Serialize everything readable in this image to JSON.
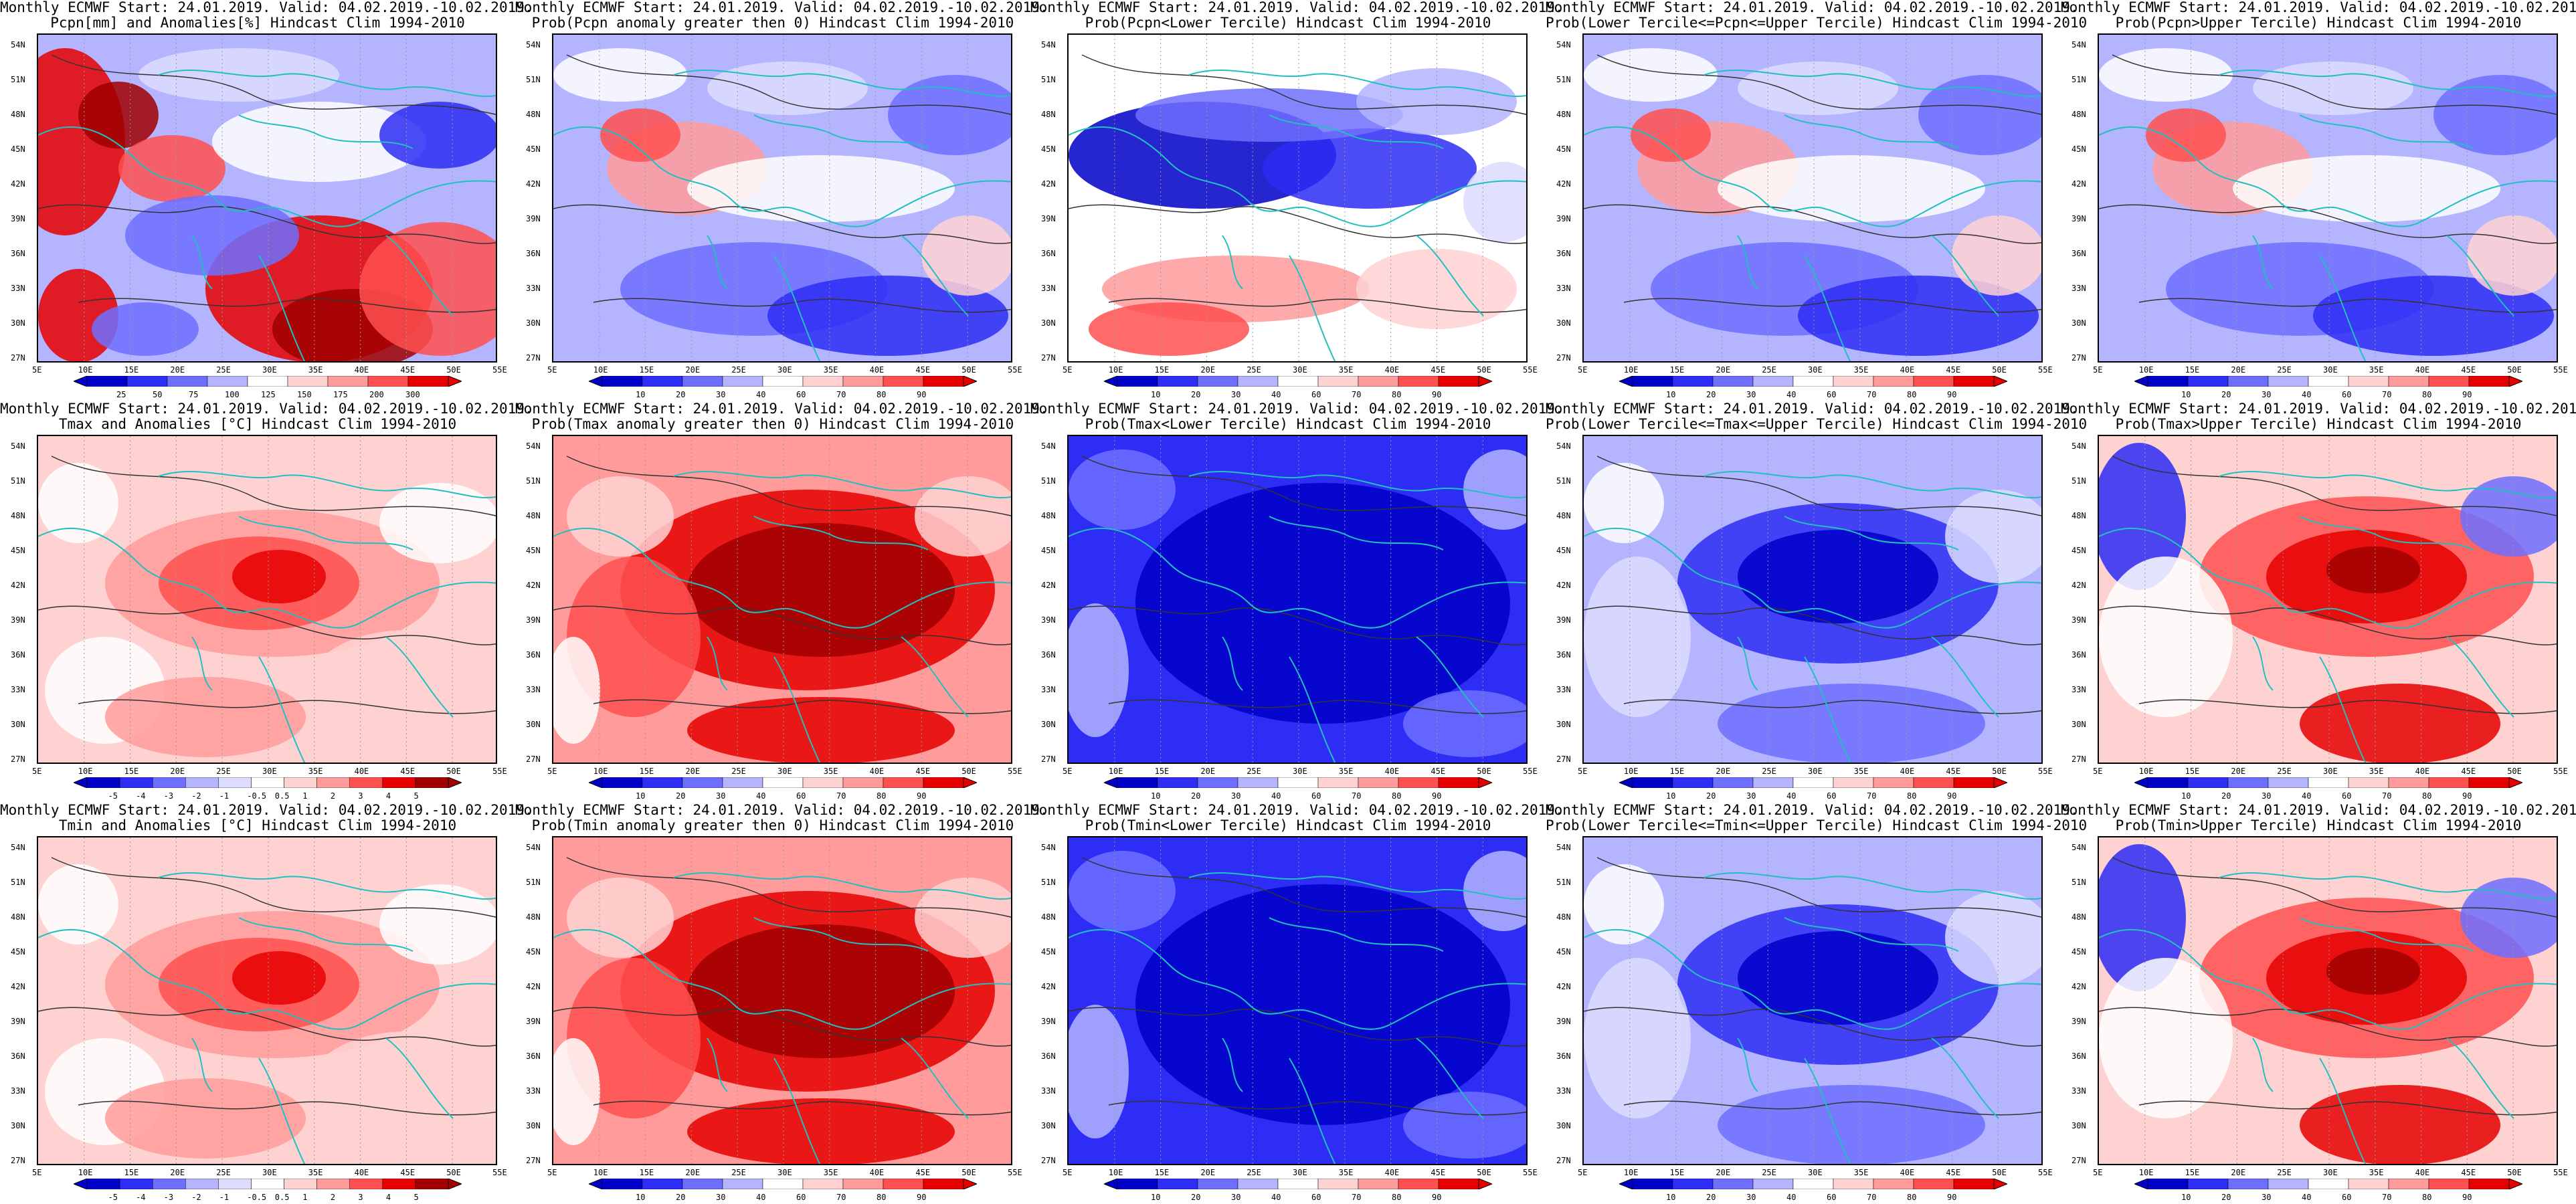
{
  "title_line1": "Monthly ECMWF Start: 24.01.2019. Valid: 04.02.2019.-10.02.2019.",
  "lat_labels": [
    "54N",
    "51N",
    "48N",
    "45N",
    "42N",
    "39N",
    "36N",
    "33N",
    "30N",
    "27N"
  ],
  "lon_labels": [
    "5E",
    "10E",
    "15E",
    "20E",
    "25E",
    "30E",
    "35E",
    "40E",
    "45E",
    "50E",
    "55E"
  ],
  "colors": {
    "deep_blue": "#0000c8",
    "blue": "#2d2df5",
    "mid_blue": "#6e6eff",
    "light_blue": "#b4b4ff",
    "pale_blue": "#dcdcff",
    "white": "#ffffff",
    "pale_red": "#ffd2d2",
    "light_red": "#ff9b9b",
    "mid_red": "#ff5050",
    "red": "#e60000",
    "deep_red": "#a00000",
    "coast": "#20c0c0",
    "contour": "#333333"
  },
  "rows": [
    {
      "variable": "precipitation",
      "panels": [
        {
          "id": "pcpn-anom",
          "title_line2": "Pcpn[mm] and Anomalies[%] Hindcast Clim 1994-2010",
          "colorbar_labels": [
            "25",
            "50",
            "75",
            "100",
            "125",
            "150",
            "175",
            "200",
            "300"
          ],
          "scheme": "anomaly_red"
        },
        {
          "id": "pcpn-prob-gt0",
          "title_line2": "Prob(Pcpn anomaly greater then 0) Hindcast Clim 1994-2010",
          "colorbar_labels": [
            "10",
            "20",
            "30",
            "40",
            "60",
            "70",
            "80",
            "90"
          ],
          "scheme": "mixed_blue"
        },
        {
          "id": "pcpn-lower",
          "title_line2": "Prob(Pcpn<Lower Tercile) Hindcast Clim 1994-2010",
          "colorbar_labels": [
            "10",
            "20",
            "30",
            "40",
            "60",
            "70",
            "80",
            "90"
          ],
          "scheme": "pcpn_lower"
        },
        {
          "id": "pcpn-middle",
          "title_line2": "Prob(Lower Tercile<=Pcpn<=Upper Tercile) Hindcast Clim 1994-2010",
          "colorbar_labels": [
            "10",
            "20",
            "30",
            "40",
            "60",
            "70",
            "80",
            "90"
          ],
          "scheme": "mixed_blue"
        },
        {
          "id": "pcpn-upper",
          "title_line2": "Prob(Pcpn>Upper Tercile) Hindcast Clim 1994-2010",
          "colorbar_labels": [
            "10",
            "20",
            "30",
            "40",
            "60",
            "70",
            "80",
            "90"
          ],
          "scheme": "mixed_blue"
        }
      ]
    },
    {
      "variable": "tmax",
      "panels": [
        {
          "id": "tmax-anom",
          "title_line2": "Tmax and Anomalies [°C] Hindcast Clim 1994-2010",
          "colorbar_labels": [
            "-5",
            "-4",
            "-3",
            "-2",
            "-1",
            "-0.5",
            "0.5",
            "1",
            "2",
            "3",
            "4",
            "5"
          ],
          "scheme": "warm"
        },
        {
          "id": "tmax-prob-gt0",
          "title_line2": "Prob(Tmax anomaly greater then 0) Hindcast Clim 1994-2010",
          "colorbar_labels": [
            "10",
            "20",
            "30",
            "40",
            "60",
            "70",
            "80",
            "90"
          ],
          "scheme": "hot"
        },
        {
          "id": "tmax-lower",
          "title_line2": "Prob(Tmax<Lower Tercile) Hindcast Clim 1994-2010",
          "colorbar_labels": [
            "10",
            "20",
            "30",
            "40",
            "60",
            "70",
            "80",
            "90"
          ],
          "scheme": "cold"
        },
        {
          "id": "tmax-middle",
          "title_line2": "Prob(Lower Tercile<=Tmax<=Upper Tercile) Hindcast Clim 1994-2010",
          "colorbar_labels": [
            "10",
            "20",
            "30",
            "40",
            "60",
            "70",
            "80",
            "90"
          ],
          "scheme": "cool"
        },
        {
          "id": "tmax-upper",
          "title_line2": "Prob(Tmax>Upper Tercile) Hindcast Clim 1994-2010",
          "colorbar_labels": [
            "10",
            "20",
            "30",
            "40",
            "60",
            "70",
            "80",
            "90"
          ],
          "scheme": "warm_upper"
        }
      ]
    },
    {
      "variable": "tmin",
      "panels": [
        {
          "id": "tmin-anom",
          "title_line2": "Tmin and Anomalies [°C] Hindcast Clim 1994-2010",
          "colorbar_labels": [
            "-5",
            "-4",
            "-3",
            "-2",
            "-1",
            "-0.5",
            "0.5",
            "1",
            "2",
            "3",
            "4",
            "5"
          ],
          "scheme": "warm"
        },
        {
          "id": "tmin-prob-gt0",
          "title_line2": "Prob(Tmin anomaly greater then 0) Hindcast Clim 1994-2010",
          "colorbar_labels": [
            "10",
            "20",
            "30",
            "40",
            "60",
            "70",
            "80",
            "90"
          ],
          "scheme": "hot"
        },
        {
          "id": "tmin-lower",
          "title_line2": "Prob(Tmin<Lower Tercile) Hindcast Clim 1994-2010",
          "colorbar_labels": [
            "10",
            "20",
            "30",
            "40",
            "60",
            "70",
            "80",
            "90"
          ],
          "scheme": "cold"
        },
        {
          "id": "tmin-middle",
          "title_line2": "Prob(Lower Tercile<=Tmin<=Upper Tercile) Hindcast Clim 1994-2010",
          "colorbar_labels": [
            "10",
            "20",
            "30",
            "40",
            "60",
            "70",
            "80",
            "90"
          ],
          "scheme": "cool"
        },
        {
          "id": "tmin-upper",
          "title_line2": "Prob(Tmin>Upper Tercile) Hindcast Clim 1994-2010",
          "colorbar_labels": [
            "10",
            "20",
            "30",
            "40",
            "60",
            "70",
            "80",
            "90"
          ],
          "scheme": "warm_upper"
        }
      ]
    }
  ]
}
